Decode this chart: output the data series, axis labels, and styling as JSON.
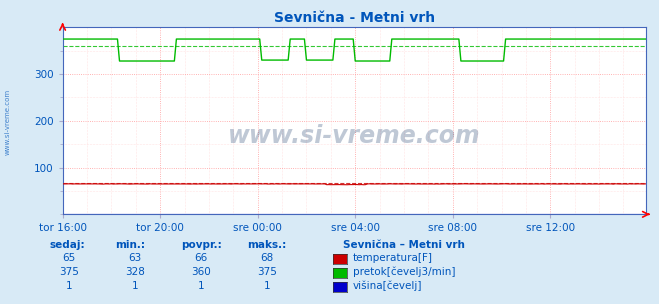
{
  "title": "Sevnična - Metni vrh",
  "bg_color": "#d8eaf6",
  "plot_bg_color": "#ffffff",
  "grid_color_major": "#ff9999",
  "grid_color_minor": "#ffcccc",
  "xlabel_color": "#0055bb",
  "ylabel_color": "#0055bb",
  "title_color": "#0055bb",
  "ylim": [
    0,
    400
  ],
  "yticks": [
    100,
    200,
    300
  ],
  "xlim": [
    0,
    287
  ],
  "xtick_labels": [
    "tor 16:00",
    "tor 20:00",
    "sre 00:00",
    "sre 04:00",
    "sre 08:00",
    "sre 12:00"
  ],
  "xtick_positions": [
    0,
    48,
    96,
    144,
    192,
    240
  ],
  "temp_avg": 66,
  "flow_avg": 360,
  "watermark": "www.si-vreme.com",
  "watermark_color": "#1a3a6b",
  "watermark_alpha": 0.28,
  "sidebar_text": "www.si-vreme.com",
  "legend_title": "Sevnična – Metni vrh",
  "legend_items": [
    "temperatura[F]",
    "pretok[čevelj3/min]",
    "višina[čevelj]"
  ],
  "legend_colors": [
    "#cc0000",
    "#00bb00",
    "#0000cc"
  ],
  "table_headers": [
    "sedaj:",
    "min.:",
    "povpr.:",
    "maks.:"
  ],
  "table_values": [
    [
      65,
      63,
      66,
      68
    ],
    [
      375,
      328,
      360,
      375
    ],
    [
      1,
      1,
      1,
      1
    ]
  ],
  "table_color": "#0055bb",
  "axis_color": "#4466bb",
  "spine_color": "#aaaacc"
}
